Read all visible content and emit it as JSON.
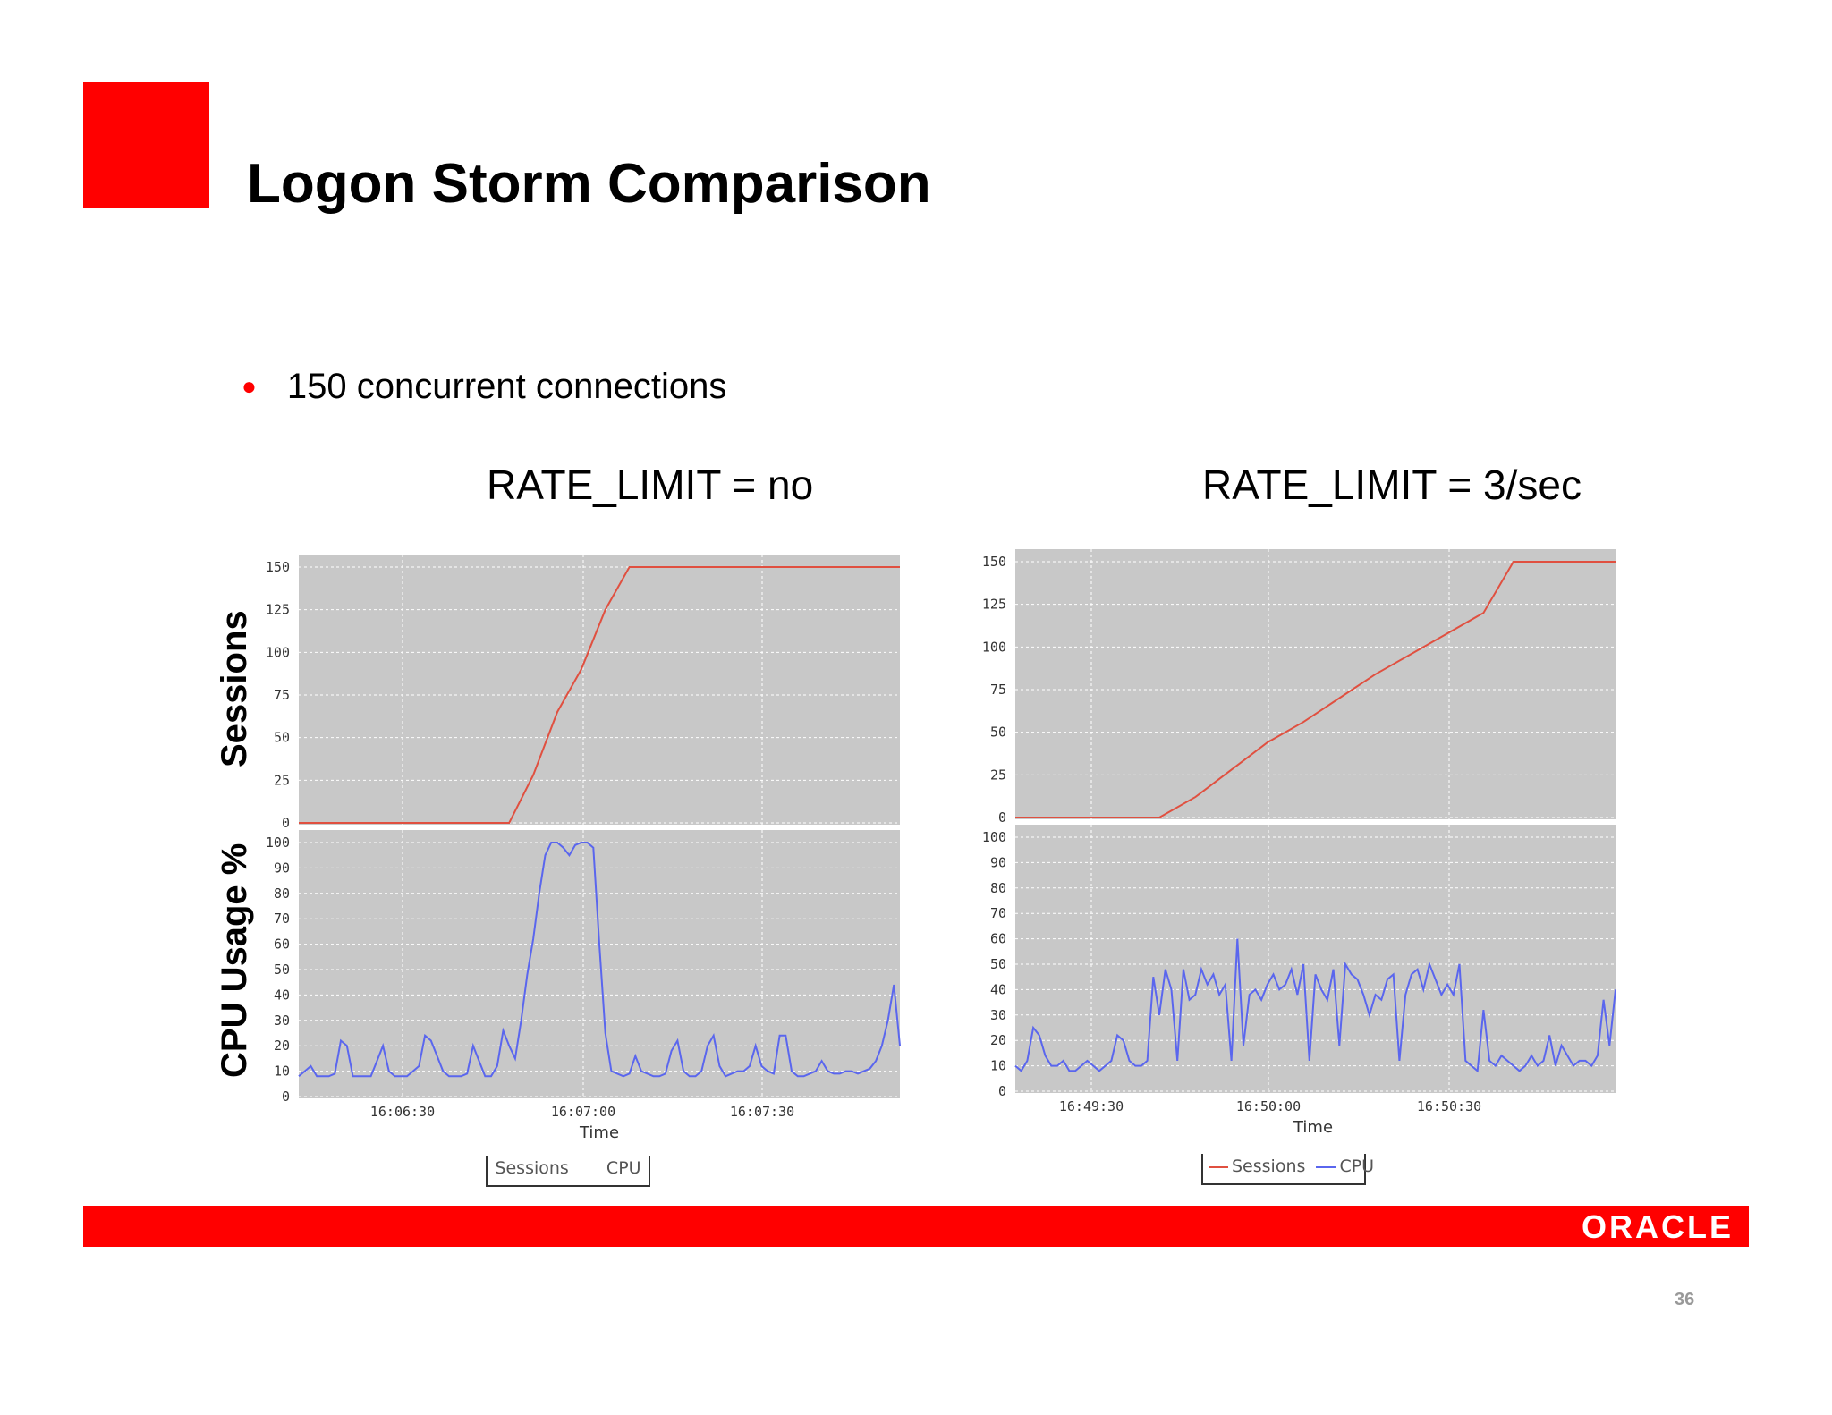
{
  "slide": {
    "title": "Logon Storm Comparison",
    "bullet": "150 concurrent connections",
    "page_number": "36",
    "logo_text": "ORACLE",
    "colors": {
      "accent_red": "#ff0000",
      "plot_bg": "#c8c8c8",
      "sessions_line": "#e05040",
      "cpu_line": "#5a66ee"
    }
  },
  "labels": {
    "sessions_axis": "Sessions",
    "cpu_axis": "CPU Usage %"
  },
  "chart_data": [
    {
      "type": "line",
      "caption": "RATE_LIMIT = no",
      "xlabel": "Time",
      "x_ticks": [
        "16:06:30",
        "16:07:00",
        "16:07:30"
      ],
      "legend": [
        "Sessions",
        "CPU"
      ],
      "legend_placement": "bottom",
      "grid": true,
      "panels": [
        {
          "name": "Sessions",
          "ylim": [
            0,
            150
          ],
          "y_ticks": [
            "150",
            "125",
            "100",
            "75",
            "50",
            "25",
            "0"
          ],
          "series": [
            {
              "name": "Sessions",
              "color": "#e05040",
              "x": [
                0,
                35,
                39,
                43,
                47,
                51,
                55,
                100
              ],
              "y": [
                0,
                0,
                28,
                65,
                90,
                125,
                150,
                150
              ]
            }
          ]
        },
        {
          "name": "CPU",
          "ylim": [
            0,
            100
          ],
          "y_ticks": [
            "100",
            "90",
            "80",
            "70",
            "60",
            "50",
            "40",
            "30",
            "20",
            "10",
            "0"
          ],
          "series": [
            {
              "name": "CPU",
              "color": "#5a66ee",
              "x": [
                0,
                1,
                2,
                3,
                4,
                5,
                6,
                7,
                8,
                9,
                10,
                11,
                12,
                13,
                14,
                15,
                16,
                17,
                18,
                19,
                20,
                21,
                22,
                23,
                24,
                25,
                26,
                27,
                28,
                29,
                30,
                31,
                32,
                33,
                34,
                35,
                36,
                37,
                38,
                39,
                40,
                41,
                42,
                43,
                44,
                45,
                46,
                47,
                48,
                49,
                50,
                51,
                52,
                53,
                54,
                55,
                56,
                57,
                58,
                59,
                60,
                61,
                62,
                63,
                64,
                65,
                66,
                67,
                68,
                69,
                70,
                71,
                72,
                73,
                74,
                75,
                76,
                77,
                78,
                79,
                80,
                81,
                82,
                83,
                84,
                85,
                86,
                87,
                88,
                89,
                90,
                91,
                92,
                93,
                94,
                95,
                96,
                97,
                98,
                99,
                100
              ],
              "y": [
                8,
                10,
                12,
                8,
                8,
                8,
                9,
                22,
                20,
                8,
                8,
                8,
                8,
                14,
                20,
                10,
                8,
                8,
                8,
                10,
                12,
                24,
                22,
                16,
                10,
                8,
                8,
                8,
                9,
                20,
                14,
                8,
                8,
                12,
                26,
                20,
                15,
                30,
                48,
                62,
                80,
                95,
                100,
                100,
                98,
                95,
                99,
                100,
                100,
                98,
                60,
                25,
                10,
                9,
                8,
                9,
                16,
                10,
                9,
                8,
                8,
                9,
                18,
                22,
                10,
                8,
                8,
                10,
                20,
                24,
                12,
                8,
                9,
                10,
                10,
                12,
                20,
                12,
                10,
                9,
                24,
                24,
                10,
                8,
                8,
                9,
                10,
                14,
                10,
                9,
                9,
                10,
                10,
                9,
                10,
                11,
                14,
                20,
                30,
                44,
                20
              ]
            }
          ]
        }
      ]
    },
    {
      "type": "line",
      "caption": "RATE_LIMIT = 3/sec",
      "xlabel": "Time",
      "x_ticks": [
        "16:49:30",
        "16:50:00",
        "16:50:30"
      ],
      "legend": [
        "Sessions",
        "CPU"
      ],
      "legend_placement": "bottom",
      "grid": true,
      "panels": [
        {
          "name": "Sessions",
          "ylim": [
            0,
            150
          ],
          "y_ticks": [
            "150",
            "125",
            "100",
            "75",
            "50",
            "25",
            "0"
          ],
          "series": [
            {
              "name": "Sessions",
              "color": "#e05040",
              "x": [
                0,
                24,
                30,
                36,
                42,
                48,
                54,
                60,
                66,
                72,
                78,
                83,
                100
              ],
              "y": [
                0,
                0,
                12,
                28,
                44,
                56,
                70,
                84,
                96,
                108,
                120,
                150,
                150
              ]
            }
          ]
        },
        {
          "name": "CPU",
          "ylim": [
            0,
            100
          ],
          "y_ticks": [
            "100",
            "90",
            "80",
            "70",
            "60",
            "50",
            "40",
            "30",
            "20",
            "10",
            "0"
          ],
          "series": [
            {
              "name": "CPU",
              "color": "#5a66ee",
              "x": [
                0,
                1,
                2,
                3,
                4,
                5,
                6,
                7,
                8,
                9,
                10,
                11,
                12,
                13,
                14,
                15,
                16,
                17,
                18,
                19,
                20,
                21,
                22,
                23,
                24,
                25,
                26,
                27,
                28,
                29,
                30,
                31,
                32,
                33,
                34,
                35,
                36,
                37,
                38,
                39,
                40,
                41,
                42,
                43,
                44,
                45,
                46,
                47,
                48,
                49,
                50,
                51,
                52,
                53,
                54,
                55,
                56,
                57,
                58,
                59,
                60,
                61,
                62,
                63,
                64,
                65,
                66,
                67,
                68,
                69,
                70,
                71,
                72,
                73,
                74,
                75,
                76,
                77,
                78,
                79,
                80,
                81,
                82,
                83,
                84,
                85,
                86,
                87,
                88,
                89,
                90,
                91,
                92,
                93,
                94,
                95,
                96,
                97,
                98,
                99,
                100
              ],
              "y": [
                10,
                8,
                12,
                25,
                22,
                14,
                10,
                10,
                12,
                8,
                8,
                10,
                12,
                10,
                8,
                10,
                12,
                22,
                20,
                12,
                10,
                10,
                12,
                45,
                30,
                48,
                40,
                12,
                48,
                36,
                38,
                48,
                42,
                46,
                38,
                42,
                12,
                60,
                18,
                38,
                40,
                36,
                42,
                46,
                40,
                42,
                48,
                38,
                50,
                12,
                46,
                40,
                36,
                48,
                18,
                50,
                46,
                44,
                38,
                30,
                38,
                36,
                44,
                46,
                12,
                38,
                46,
                48,
                40,
                50,
                44,
                38,
                42,
                38,
                50,
                12,
                10,
                8,
                32,
                12,
                10,
                14,
                12,
                10,
                8,
                10,
                14,
                10,
                12,
                22,
                10,
                18,
                14,
                10,
                12,
                12,
                10,
                14,
                36,
                18,
                40
              ]
            }
          ]
        }
      ]
    }
  ]
}
